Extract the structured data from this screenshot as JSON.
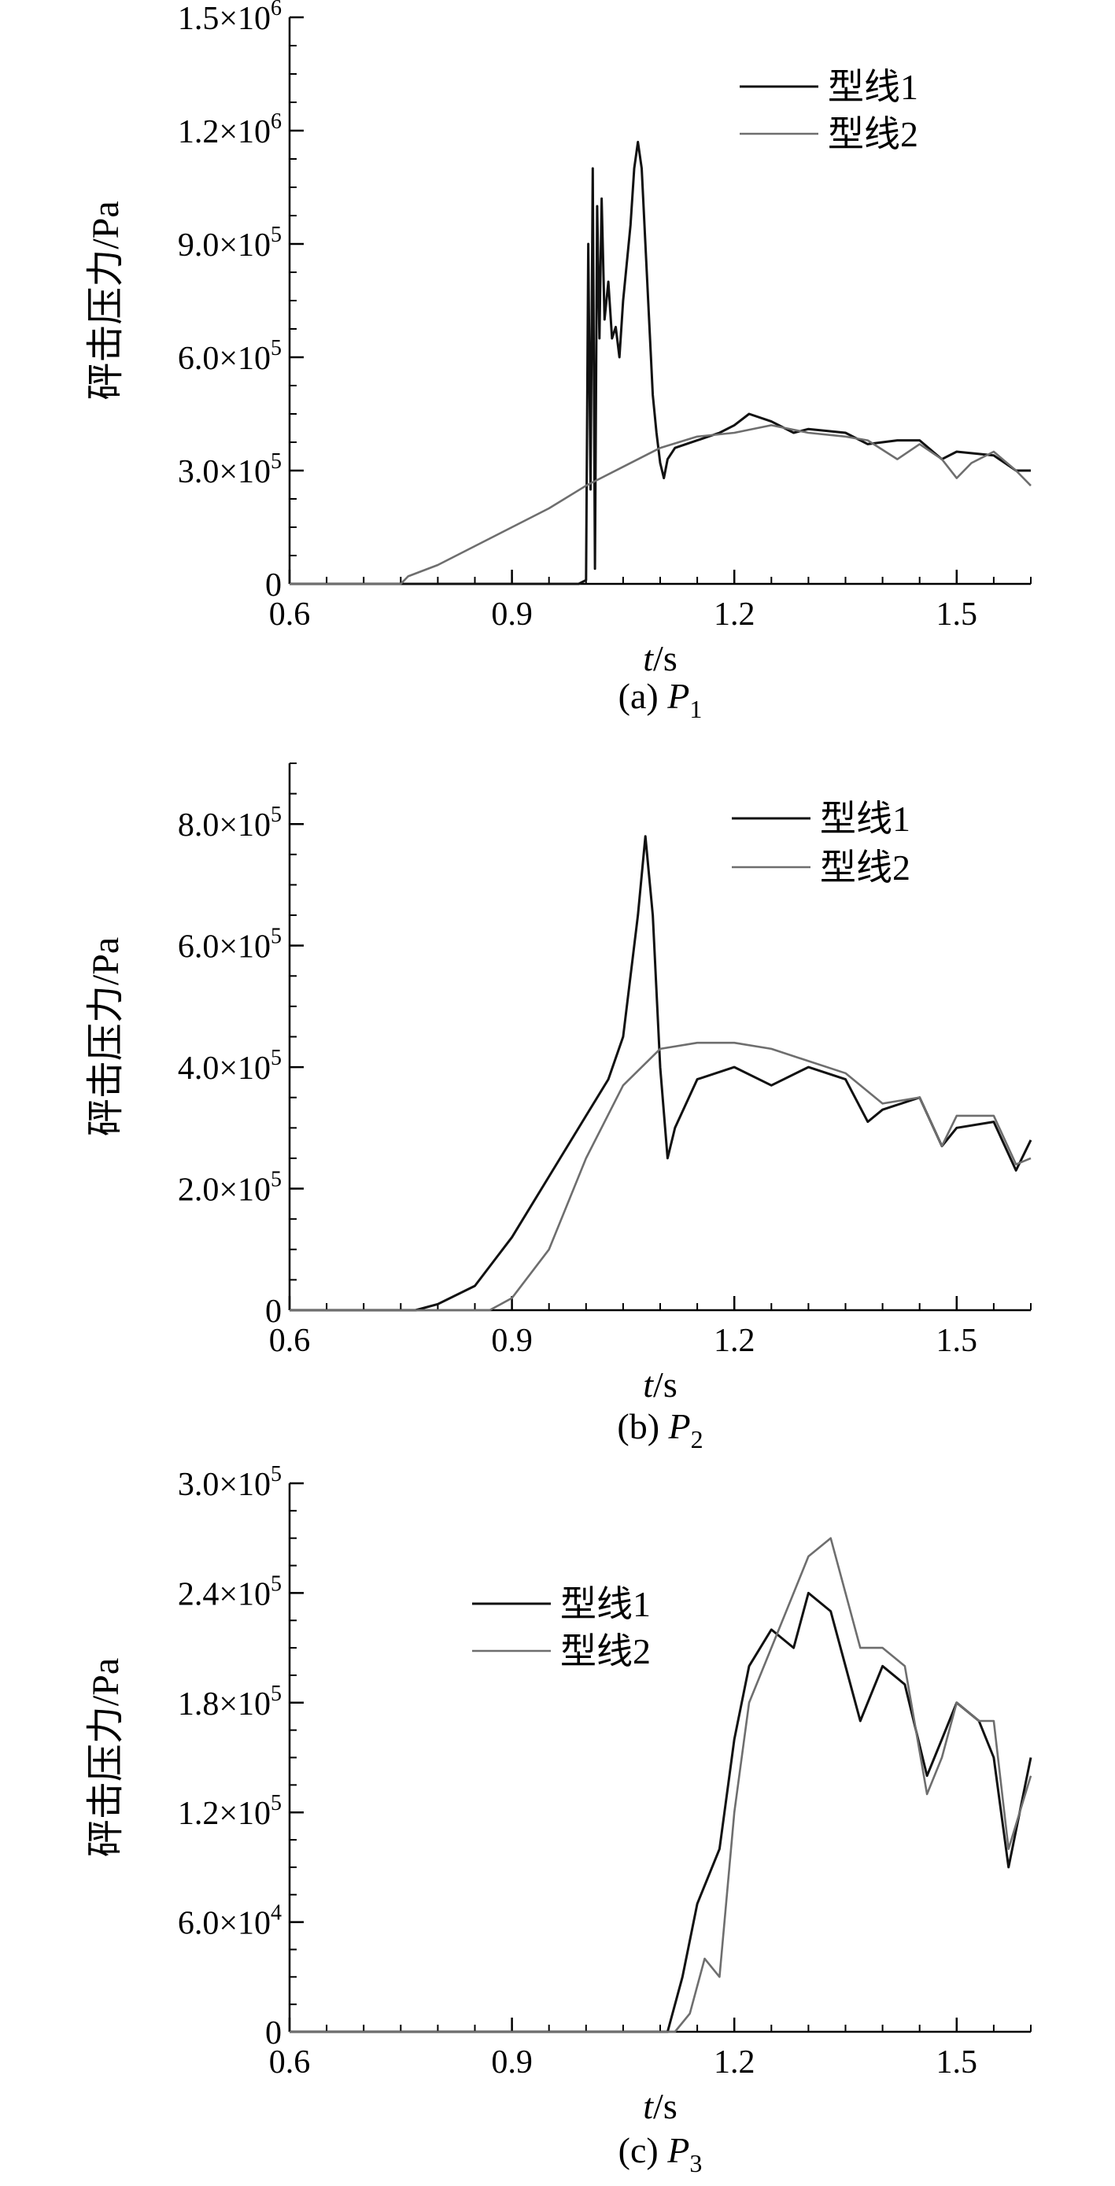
{
  "colors": {
    "series1": "#111111",
    "series2": "#6e6e6e",
    "axis": "#000000"
  },
  "chart_data": [
    {
      "type": "line",
      "panel": "a",
      "caption_prefix": "(a) ",
      "caption_var": "P",
      "caption_sub": "1",
      "xlabel_var": "t",
      "xlabel_unit": "/s",
      "ylabel": "砰击压力/Pa",
      "xlim": [
        0.6,
        1.6
      ],
      "ylim": [
        0,
        1500000
      ],
      "x_ticks": [
        0.6,
        0.9,
        1.2,
        1.5
      ],
      "x_tick_labels": [
        "0.6",
        "0.9",
        "1.2",
        "1.5"
      ],
      "y_ticks": [
        0,
        300000,
        600000,
        900000,
        1200000,
        1500000
      ],
      "y_tick_labels": [
        {
          "mant": "0",
          "exp": ""
        },
        {
          "mant": "3.0×10",
          "exp": "5"
        },
        {
          "mant": "6.0×10",
          "exp": "5"
        },
        {
          "mant": "9.0×10",
          "exp": "5"
        },
        {
          "mant": "1.2×10",
          "exp": "6"
        },
        {
          "mant": "1.5×10",
          "exp": "6"
        }
      ],
      "legend_position": "top-right",
      "series": [
        {
          "name": "型线1",
          "points": [
            [
              0.6,
              0
            ],
            [
              0.99,
              0
            ],
            [
              1.0,
              10000
            ],
            [
              1.003,
              900000
            ],
            [
              1.006,
              250000
            ],
            [
              1.009,
              1100000
            ],
            [
              1.012,
              40000
            ],
            [
              1.015,
              1000000
            ],
            [
              1.018,
              650000
            ],
            [
              1.021,
              1020000
            ],
            [
              1.025,
              700000
            ],
            [
              1.03,
              800000
            ],
            [
              1.035,
              650000
            ],
            [
              1.04,
              680000
            ],
            [
              1.045,
              600000
            ],
            [
              1.05,
              750000
            ],
            [
              1.055,
              850000
            ],
            [
              1.06,
              950000
            ],
            [
              1.065,
              1100000
            ],
            [
              1.07,
              1170000
            ],
            [
              1.075,
              1100000
            ],
            [
              1.08,
              900000
            ],
            [
              1.085,
              700000
            ],
            [
              1.09,
              500000
            ],
            [
              1.095,
              400000
            ],
            [
              1.1,
              320000
            ],
            [
              1.105,
              280000
            ],
            [
              1.11,
              330000
            ],
            [
              1.12,
              360000
            ],
            [
              1.15,
              380000
            ],
            [
              1.18,
              400000
            ],
            [
              1.2,
              420000
            ],
            [
              1.22,
              450000
            ],
            [
              1.25,
              430000
            ],
            [
              1.28,
              400000
            ],
            [
              1.3,
              410000
            ],
            [
              1.35,
              400000
            ],
            [
              1.38,
              370000
            ],
            [
              1.42,
              380000
            ],
            [
              1.45,
              380000
            ],
            [
              1.48,
              330000
            ],
            [
              1.5,
              350000
            ],
            [
              1.55,
              340000
            ],
            [
              1.58,
              300000
            ],
            [
              1.6,
              300000
            ]
          ]
        },
        {
          "name": "型线2",
          "points": [
            [
              0.6,
              0
            ],
            [
              0.75,
              0
            ],
            [
              0.76,
              20000
            ],
            [
              0.8,
              50000
            ],
            [
              0.85,
              100000
            ],
            [
              0.9,
              150000
            ],
            [
              0.95,
              200000
            ],
            [
              1.0,
              260000
            ],
            [
              1.05,
              310000
            ],
            [
              1.1,
              360000
            ],
            [
              1.15,
              390000
            ],
            [
              1.2,
              400000
            ],
            [
              1.25,
              420000
            ],
            [
              1.3,
              400000
            ],
            [
              1.35,
              390000
            ],
            [
              1.38,
              380000
            ],
            [
              1.42,
              330000
            ],
            [
              1.45,
              370000
            ],
            [
              1.48,
              330000
            ],
            [
              1.5,
              280000
            ],
            [
              1.52,
              320000
            ],
            [
              1.55,
              350000
            ],
            [
              1.58,
              300000
            ],
            [
              1.6,
              260000
            ]
          ]
        }
      ]
    },
    {
      "type": "line",
      "panel": "b",
      "caption_prefix": "(b) ",
      "caption_var": "P",
      "caption_sub": "2",
      "xlabel_var": "t",
      "xlabel_unit": "/s",
      "ylabel": "砰击压力/Pa",
      "xlim": [
        0.6,
        1.6
      ],
      "ylim": [
        0,
        900000
      ],
      "x_ticks": [
        0.6,
        0.9,
        1.2,
        1.5
      ],
      "x_tick_labels": [
        "0.6",
        "0.9",
        "1.2",
        "1.5"
      ],
      "y_ticks": [
        0,
        200000,
        400000,
        600000,
        800000
      ],
      "y_tick_labels": [
        {
          "mant": "0",
          "exp": ""
        },
        {
          "mant": "2.0×10",
          "exp": "5"
        },
        {
          "mant": "4.0×10",
          "exp": "5"
        },
        {
          "mant": "6.0×10",
          "exp": "5"
        },
        {
          "mant": "8.0×10",
          "exp": "5"
        }
      ],
      "legend_position": "top-right",
      "series": [
        {
          "name": "型线1",
          "points": [
            [
              0.6,
              0
            ],
            [
              0.77,
              0
            ],
            [
              0.8,
              10000
            ],
            [
              0.85,
              40000
            ],
            [
              0.9,
              120000
            ],
            [
              0.95,
              220000
            ],
            [
              1.0,
              320000
            ],
            [
              1.03,
              380000
            ],
            [
              1.05,
              450000
            ],
            [
              1.07,
              650000
            ],
            [
              1.08,
              780000
            ],
            [
              1.09,
              650000
            ],
            [
              1.1,
              400000
            ],
            [
              1.11,
              250000
            ],
            [
              1.12,
              300000
            ],
            [
              1.15,
              380000
            ],
            [
              1.2,
              400000
            ],
            [
              1.25,
              370000
            ],
            [
              1.3,
              400000
            ],
            [
              1.35,
              380000
            ],
            [
              1.38,
              310000
            ],
            [
              1.4,
              330000
            ],
            [
              1.45,
              350000
            ],
            [
              1.48,
              270000
            ],
            [
              1.5,
              300000
            ],
            [
              1.55,
              310000
            ],
            [
              1.58,
              230000
            ],
            [
              1.6,
              280000
            ]
          ]
        },
        {
          "name": "型线2",
          "points": [
            [
              0.6,
              0
            ],
            [
              0.87,
              0
            ],
            [
              0.9,
              20000
            ],
            [
              0.95,
              100000
            ],
            [
              1.0,
              250000
            ],
            [
              1.05,
              370000
            ],
            [
              1.1,
              430000
            ],
            [
              1.15,
              440000
            ],
            [
              1.2,
              440000
            ],
            [
              1.25,
              430000
            ],
            [
              1.3,
              410000
            ],
            [
              1.35,
              390000
            ],
            [
              1.4,
              340000
            ],
            [
              1.45,
              350000
            ],
            [
              1.48,
              270000
            ],
            [
              1.5,
              320000
            ],
            [
              1.55,
              320000
            ],
            [
              1.58,
              240000
            ],
            [
              1.6,
              250000
            ]
          ]
        }
      ]
    },
    {
      "type": "line",
      "panel": "c",
      "caption_prefix": "(c) ",
      "caption_var": "P",
      "caption_sub": "3",
      "xlabel_var": "t",
      "xlabel_unit": "/s",
      "ylabel": "砰击压力/Pa",
      "xlim": [
        0.6,
        1.6
      ],
      "ylim": [
        0,
        300000
      ],
      "x_ticks": [
        0.6,
        0.9,
        1.2,
        1.5
      ],
      "x_tick_labels": [
        "0.6",
        "0.9",
        "1.2",
        "1.5"
      ],
      "y_ticks": [
        0,
        60000,
        120000,
        180000,
        240000,
        300000
      ],
      "y_tick_labels": [
        {
          "mant": "0",
          "exp": ""
        },
        {
          "mant": "6.0×10",
          "exp": "4"
        },
        {
          "mant": "1.2×10",
          "exp": "5"
        },
        {
          "mant": "1.8×10",
          "exp": "5"
        },
        {
          "mant": "2.4×10",
          "exp": "5"
        },
        {
          "mant": "3.0×10",
          "exp": "5"
        }
      ],
      "legend_position": "top-left",
      "series": [
        {
          "name": "型线1",
          "points": [
            [
              0.6,
              0
            ],
            [
              1.11,
              0
            ],
            [
              1.13,
              30000
            ],
            [
              1.15,
              70000
            ],
            [
              1.18,
              100000
            ],
            [
              1.2,
              160000
            ],
            [
              1.22,
              200000
            ],
            [
              1.25,
              220000
            ],
            [
              1.28,
              210000
            ],
            [
              1.3,
              240000
            ],
            [
              1.33,
              230000
            ],
            [
              1.35,
              200000
            ],
            [
              1.37,
              170000
            ],
            [
              1.4,
              200000
            ],
            [
              1.43,
              190000
            ],
            [
              1.46,
              140000
            ],
            [
              1.48,
              160000
            ],
            [
              1.5,
              180000
            ],
            [
              1.53,
              170000
            ],
            [
              1.55,
              150000
            ],
            [
              1.57,
              90000
            ],
            [
              1.6,
              150000
            ]
          ]
        },
        {
          "name": "型线2",
          "points": [
            [
              0.6,
              0
            ],
            [
              1.12,
              0
            ],
            [
              1.14,
              10000
            ],
            [
              1.16,
              40000
            ],
            [
              1.18,
              30000
            ],
            [
              1.2,
              120000
            ],
            [
              1.22,
              180000
            ],
            [
              1.25,
              210000
            ],
            [
              1.28,
              240000
            ],
            [
              1.3,
              260000
            ],
            [
              1.33,
              270000
            ],
            [
              1.35,
              240000
            ],
            [
              1.37,
              210000
            ],
            [
              1.4,
              210000
            ],
            [
              1.43,
              200000
            ],
            [
              1.46,
              130000
            ],
            [
              1.48,
              150000
            ],
            [
              1.5,
              180000
            ],
            [
              1.53,
              170000
            ],
            [
              1.55,
              170000
            ],
            [
              1.57,
              100000
            ],
            [
              1.6,
              140000
            ]
          ]
        }
      ]
    }
  ]
}
